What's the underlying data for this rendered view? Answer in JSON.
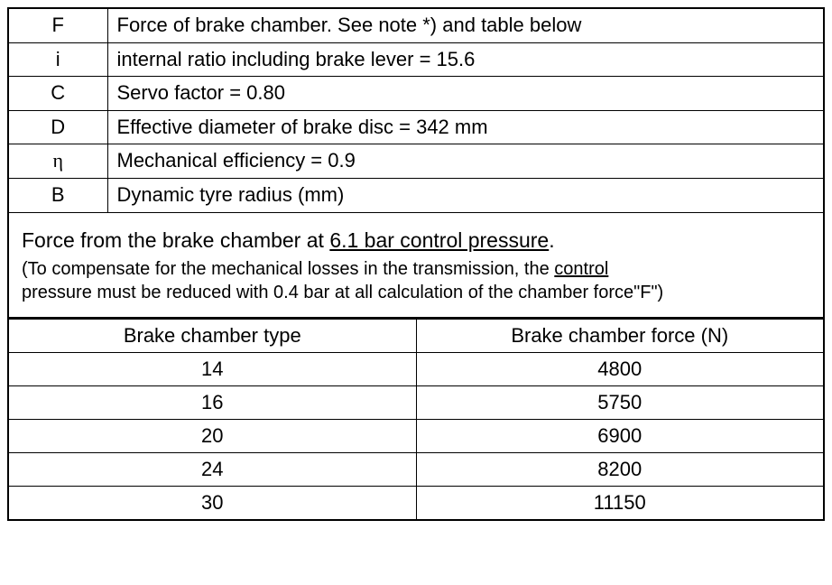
{
  "definitions": [
    {
      "symbol": "F",
      "desc": "Force of brake chamber. See note *) and table below",
      "greek": false
    },
    {
      "symbol": "i",
      "desc": "internal ratio including brake lever = 15.6",
      "greek": false
    },
    {
      "symbol": "C",
      "desc": "Servo factor = 0.80",
      "greek": false
    },
    {
      "symbol": "D",
      "desc": "Effective diameter of brake disc = 342 mm",
      "greek": false
    },
    {
      "symbol": "η",
      "desc": "Mechanical efficiency = 0.9",
      "greek": true
    },
    {
      "symbol": "B",
      "desc": "Dynamic tyre radius (mm)",
      "greek": false
    }
  ],
  "note": {
    "main_pre": "Force from the brake chamber at ",
    "main_underlined": "6.1 bar control pressure",
    "main_post": ".",
    "sub_pre": "(To compensate for the mechanical losses in the transmission, the ",
    "sub_underlined": "control",
    "sub_post1": " pressure must be reduced with 0.4 bar at all calculation of the chamber force\"F\")"
  },
  "force_table": {
    "headers": [
      "Brake chamber type",
      "Brake chamber force (N)"
    ],
    "rows": [
      [
        "14",
        "4800"
      ],
      [
        "16",
        "5750"
      ],
      [
        "20",
        "6900"
      ],
      [
        "24",
        "8200"
      ],
      [
        "30",
        "11150"
      ]
    ]
  }
}
